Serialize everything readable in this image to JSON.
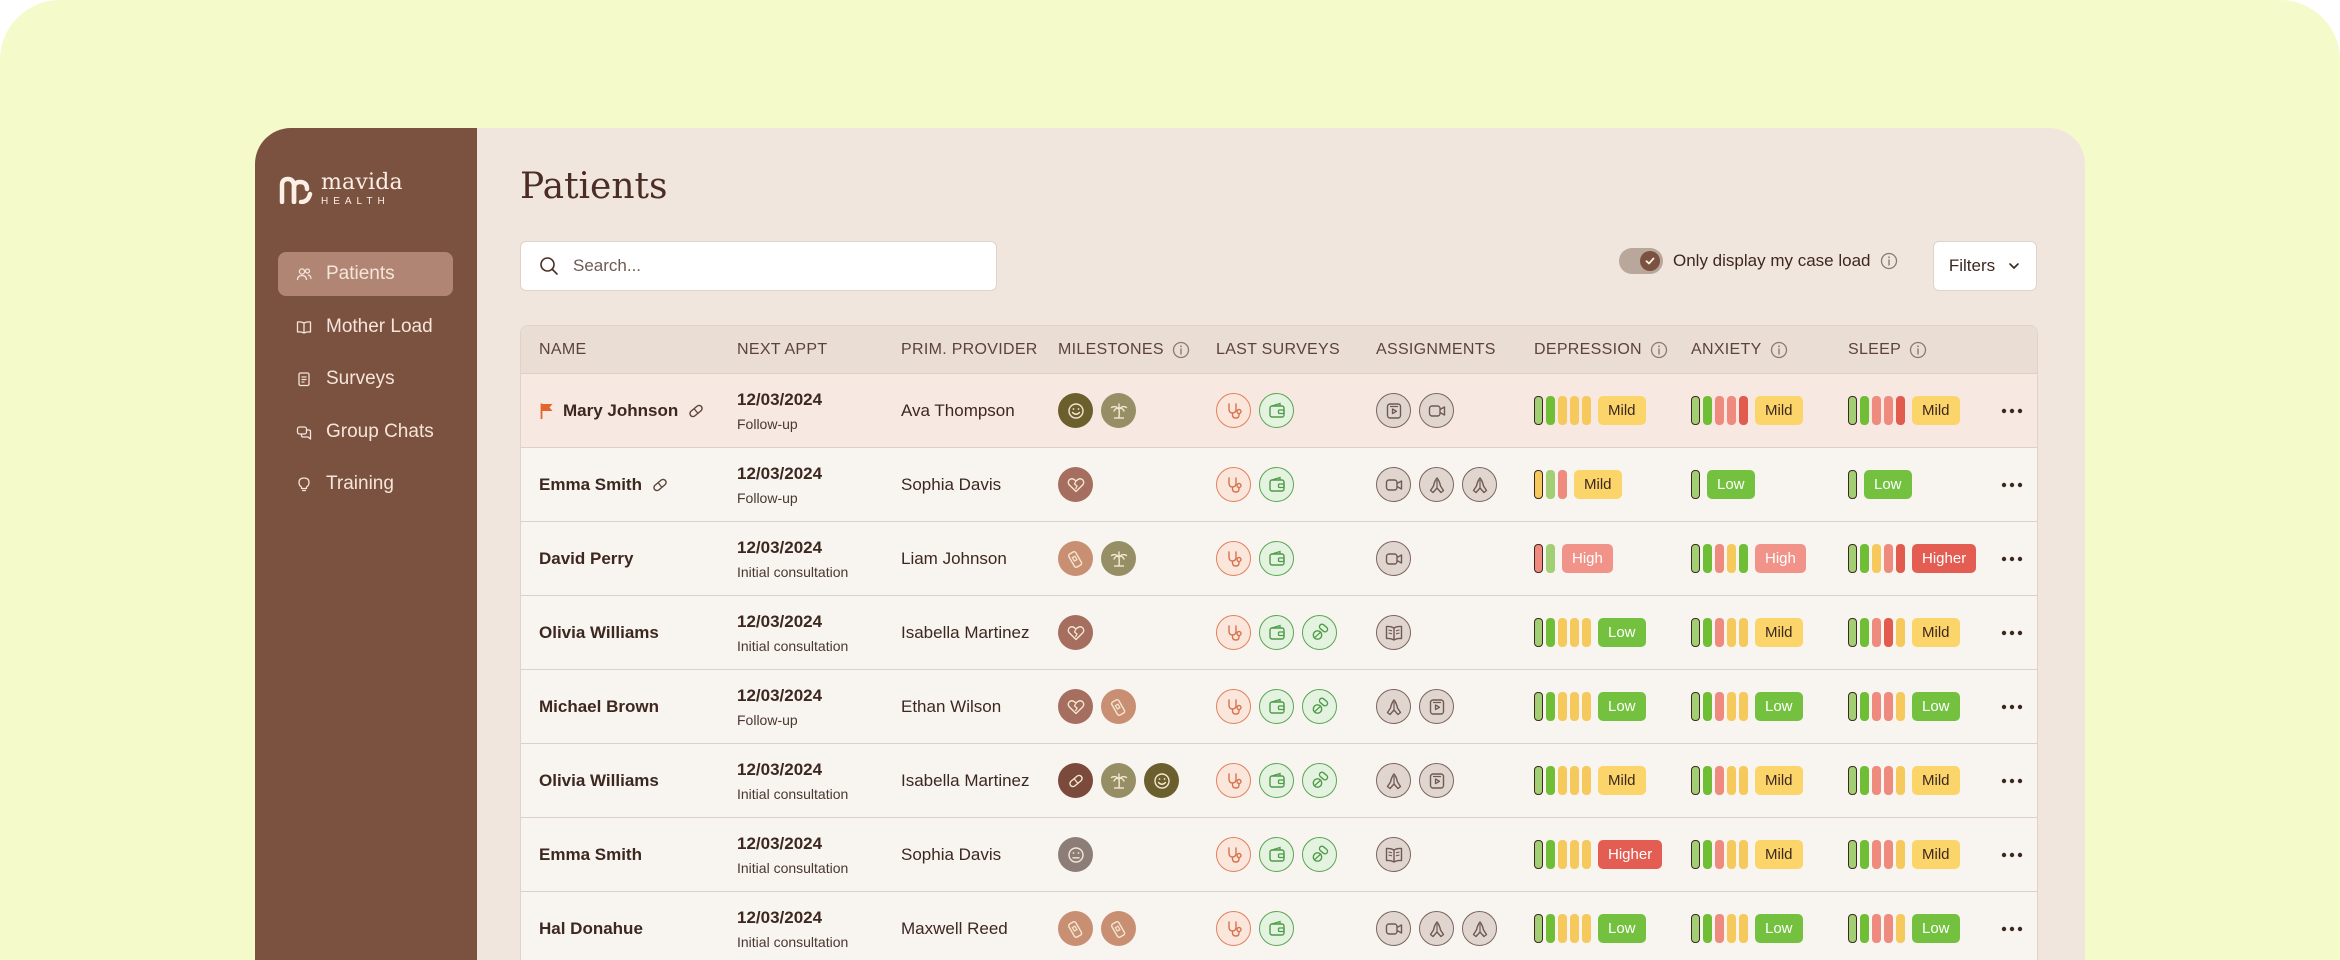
{
  "brand": {
    "name": "mavida",
    "sub": "HEALTH"
  },
  "sidebar": {
    "items": [
      {
        "label": "Patients",
        "icon": "users-icon",
        "active": true
      },
      {
        "label": "Mother Load",
        "icon": "book-icon",
        "active": false
      },
      {
        "label": "Surveys",
        "icon": "clipboard-icon",
        "active": false
      },
      {
        "label": "Group Chats",
        "icon": "chat-icon",
        "active": false
      },
      {
        "label": "Training",
        "icon": "lightbulb-icon",
        "active": false
      }
    ]
  },
  "page": {
    "title": "Patients"
  },
  "search": {
    "placeholder": "Search..."
  },
  "caseload": {
    "label": "Only display my case load",
    "enabled": true
  },
  "filters": {
    "label": "Filters"
  },
  "columns": {
    "name": "NAME",
    "appt": "NEXT APPT",
    "provider": "PRIM. PROVIDER",
    "milestones": "MILESTONES",
    "surveys": "LAST SURVEYS",
    "assignments": "ASSIGNMENTS",
    "depression": "DEPRESSION",
    "anxiety": "ANXIETY",
    "sleep": "SLEEP"
  },
  "colors": {
    "green": "#6fbe36",
    "lightgreen": "#a3cf74",
    "yellow": "#f6c95d",
    "salmon": "#ee8b7e",
    "red": "#e25b4f",
    "badgeMild": "#fbd569",
    "badgeLow": "#74c140",
    "badgeHigh": "#f2938a",
    "badgeHigher": "#e35d52"
  },
  "rows": [
    {
      "name": "Mary Johnson",
      "flag": true,
      "pill": true,
      "date": "12/03/2024",
      "type": "Follow-up",
      "provider": "Ava Thompson",
      "milestones": [
        [
          "m-olive",
          "smile-icon"
        ],
        [
          "m-sage",
          "palm-tree-icon"
        ]
      ],
      "surveys": [
        "stethoscope-icon",
        "wallet-icon"
      ],
      "assignments": [
        "video-icon",
        "video-call-icon"
      ],
      "depression": {
        "bars": [
          "lightgreen",
          "green",
          "yellow",
          "yellow",
          "yellow"
        ],
        "cur": 0,
        "level": "Mild"
      },
      "anxiety": {
        "bars": [
          "lightgreen",
          "green",
          "salmon",
          "salmon",
          "red"
        ],
        "cur": 0,
        "level": "Mild"
      },
      "sleep": {
        "bars": [
          "lightgreen",
          "green",
          "salmon",
          "salmon",
          "red"
        ],
        "cur": 0,
        "level": "Mild"
      }
    },
    {
      "name": "Emma Smith",
      "flag": false,
      "pill": true,
      "date": "12/03/2024",
      "type": "Follow-up",
      "provider": "Sophia Davis",
      "milestones": [
        [
          "m-rose",
          "broken-heart-icon"
        ]
      ],
      "surveys": [
        "stethoscope-icon",
        "wallet-icon"
      ],
      "assignments": [
        "video-call-icon",
        "praying-hands-icon",
        "praying-hands-icon"
      ],
      "depression": {
        "bars": [
          "yellow",
          "lightgreen",
          "salmon"
        ],
        "cur": 0,
        "level": "Mild"
      },
      "anxiety": {
        "bars": [
          "lightgreen"
        ],
        "cur": 0,
        "level": "Low"
      },
      "sleep": {
        "bars": [
          "lightgreen"
        ],
        "cur": 0,
        "level": "Low"
      }
    },
    {
      "name": "David Perry",
      "flag": false,
      "pill": false,
      "date": "12/03/2024",
      "type": "Initial consultation",
      "provider": "Liam Johnson",
      "milestones": [
        [
          "m-tan",
          "pregnancy-test-icon"
        ],
        [
          "m-sage",
          "palm-tree-icon"
        ]
      ],
      "surveys": [
        "stethoscope-icon",
        "wallet-icon"
      ],
      "assignments": [
        "video-call-icon"
      ],
      "depression": {
        "bars": [
          "salmon",
          "lightgreen"
        ],
        "cur": 0,
        "level": "High"
      },
      "anxiety": {
        "bars": [
          "lightgreen",
          "green",
          "salmon",
          "yellow",
          "green"
        ],
        "cur": 0,
        "level": "High"
      },
      "sleep": {
        "bars": [
          "lightgreen",
          "green",
          "yellow",
          "salmon",
          "red"
        ],
        "cur": 0,
        "level": "Higher"
      }
    },
    {
      "name": "Olivia Williams",
      "flag": false,
      "pill": false,
      "date": "12/03/2024",
      "type": "Initial consultation",
      "provider": "Isabella Martinez",
      "milestones": [
        [
          "m-rose",
          "broken-heart-icon"
        ]
      ],
      "surveys": [
        "stethoscope-icon",
        "wallet-icon",
        "pills-icon"
      ],
      "assignments": [
        "open-book-icon"
      ],
      "depression": {
        "bars": [
          "lightgreen",
          "green",
          "yellow",
          "yellow",
          "yellow"
        ],
        "cur": 0,
        "level": "Low"
      },
      "anxiety": {
        "bars": [
          "lightgreen",
          "green",
          "salmon",
          "yellow",
          "yellow"
        ],
        "cur": 0,
        "level": "Mild"
      },
      "sleep": {
        "bars": [
          "lightgreen",
          "green",
          "salmon",
          "red",
          "yellow"
        ],
        "cur": 0,
        "level": "Mild"
      }
    },
    {
      "name": "Michael Brown",
      "flag": false,
      "pill": false,
      "date": "12/03/2024",
      "type": "Follow-up",
      "provider": "Ethan Wilson",
      "milestones": [
        [
          "m-rose",
          "broken-heart-icon"
        ],
        [
          "m-tan",
          "pregnancy-test-icon"
        ]
      ],
      "surveys": [
        "stethoscope-icon",
        "wallet-icon",
        "pills-icon"
      ],
      "assignments": [
        "praying-hands-icon",
        "video-icon"
      ],
      "depression": {
        "bars": [
          "lightgreen",
          "green",
          "yellow",
          "yellow",
          "yellow"
        ],
        "cur": 0,
        "level": "Low"
      },
      "anxiety": {
        "bars": [
          "lightgreen",
          "green",
          "salmon",
          "yellow",
          "yellow"
        ],
        "cur": 0,
        "level": "Low"
      },
      "sleep": {
        "bars": [
          "lightgreen",
          "green",
          "salmon",
          "salmon",
          "yellow"
        ],
        "cur": 0,
        "level": "Low"
      }
    },
    {
      "name": "Olivia Williams",
      "flag": false,
      "pill": false,
      "date": "12/03/2024",
      "type": "Initial consultation",
      "provider": "Isabella Martinez",
      "milestones": [
        [
          "m-brown",
          "pill-icon"
        ],
        [
          "m-sage",
          "palm-tree-icon"
        ],
        [
          "m-olive",
          "smile-icon"
        ]
      ],
      "surveys": [
        "stethoscope-icon",
        "wallet-icon",
        "pills-icon"
      ],
      "assignments": [
        "praying-hands-icon",
        "video-icon"
      ],
      "depression": {
        "bars": [
          "lightgreen",
          "green",
          "yellow",
          "yellow",
          "yellow"
        ],
        "cur": 0,
        "level": "Mild"
      },
      "anxiety": {
        "bars": [
          "lightgreen",
          "green",
          "salmon",
          "yellow",
          "yellow"
        ],
        "cur": 0,
        "level": "Mild"
      },
      "sleep": {
        "bars": [
          "lightgreen",
          "green",
          "salmon",
          "salmon",
          "yellow"
        ],
        "cur": 0,
        "level": "Mild"
      }
    },
    {
      "name": "Emma Smith",
      "flag": false,
      "pill": false,
      "date": "12/03/2024",
      "type": "Initial consultation",
      "provider": "Sophia Davis",
      "milestones": [
        [
          "m-grey",
          "neutral-face-icon"
        ]
      ],
      "surveys": [
        "stethoscope-icon",
        "wallet-icon",
        "pills-icon"
      ],
      "assignments": [
        "open-book-icon"
      ],
      "depression": {
        "bars": [
          "lightgreen",
          "green",
          "yellow",
          "yellow",
          "yellow"
        ],
        "cur": 0,
        "level": "Higher"
      },
      "anxiety": {
        "bars": [
          "lightgreen",
          "green",
          "salmon",
          "yellow",
          "yellow"
        ],
        "cur": 0,
        "level": "Mild"
      },
      "sleep": {
        "bars": [
          "lightgreen",
          "green",
          "salmon",
          "salmon",
          "yellow"
        ],
        "cur": 0,
        "level": "Mild"
      }
    },
    {
      "name": "Hal Donahue",
      "flag": false,
      "pill": false,
      "date": "12/03/2024",
      "type": "Initial consultation",
      "provider": "Maxwell Reed",
      "milestones": [
        [
          "m-tan",
          "pregnancy-test-icon"
        ],
        [
          "m-tan",
          "pregnancy-test-icon"
        ]
      ],
      "surveys": [
        "stethoscope-icon",
        "wallet-icon"
      ],
      "assignments": [
        "video-call-icon",
        "praying-hands-icon",
        "praying-hands-icon"
      ],
      "depression": {
        "bars": [
          "lightgreen",
          "green",
          "yellow",
          "yellow",
          "yellow"
        ],
        "cur": 0,
        "level": "Low"
      },
      "anxiety": {
        "bars": [
          "lightgreen",
          "green",
          "salmon",
          "yellow",
          "yellow"
        ],
        "cur": 0,
        "level": "Low"
      },
      "sleep": {
        "bars": [
          "lightgreen",
          "green",
          "salmon",
          "salmon",
          "yellow"
        ],
        "cur": 0,
        "level": "Low"
      }
    }
  ]
}
